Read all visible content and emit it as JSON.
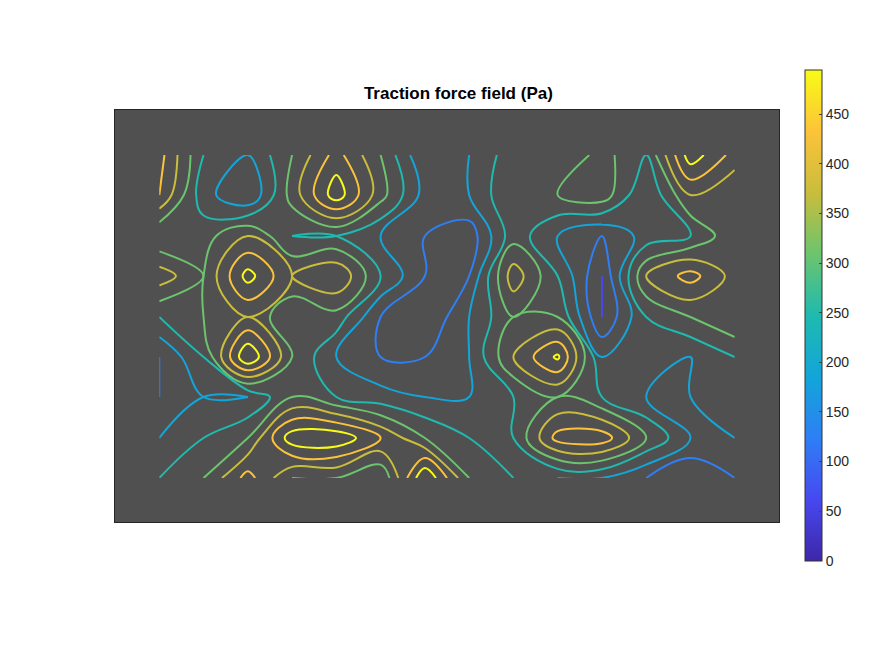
{
  "chart_data": {
    "type": "contour",
    "title": "Traction force field (Pa)",
    "x": [
      45,
      90,
      135,
      180,
      225,
      270,
      315,
      360,
      405,
      450,
      495,
      540,
      585,
      630
    ],
    "y": [
      45,
      85,
      126,
      166,
      207,
      247,
      287,
      328,
      368
    ],
    "z": [
      [
        420,
        250,
        200,
        300,
        420,
        300,
        150,
        200,
        280,
        250,
        320,
        250,
        480,
        380
      ],
      [
        400,
        220,
        150,
        320,
        480,
        320,
        180,
        200,
        300,
        300,
        330,
        200,
        350,
        300
      ],
      [
        250,
        280,
        350,
        250,
        250,
        200,
        150,
        120,
        280,
        200,
        150,
        220,
        250,
        340
      ],
      [
        380,
        300,
        470,
        350,
        400,
        250,
        150,
        150,
        380,
        250,
        100,
        350,
        420,
        330
      ],
      [
        250,
        300,
        350,
        250,
        280,
        150,
        100,
        200,
        300,
        300,
        100,
        250,
        300,
        350
      ],
      [
        150,
        250,
        500,
        300,
        200,
        150,
        150,
        200,
        350,
        460,
        200,
        250,
        200,
        250
      ],
      [
        150,
        200,
        200,
        300,
        250,
        220,
        200,
        200,
        250,
        300,
        250,
        200,
        200,
        220
      ],
      [
        200,
        250,
        300,
        480,
        490,
        400,
        300,
        250,
        250,
        420,
        430,
        300,
        200,
        200
      ],
      [
        250,
        300,
        420,
        300,
        300,
        250,
        500,
        300,
        250,
        200,
        200,
        150,
        100,
        150
      ]
    ],
    "xlim": [
      0,
      675
    ],
    "ylim": [
      412,
      0
    ],
    "tick_labels": false,
    "colorbar_range": [
      0,
      495
    ],
    "colorbar_ticks": [
      0,
      50,
      100,
      150,
      200,
      250,
      300,
      350,
      400,
      450
    ]
  }
}
